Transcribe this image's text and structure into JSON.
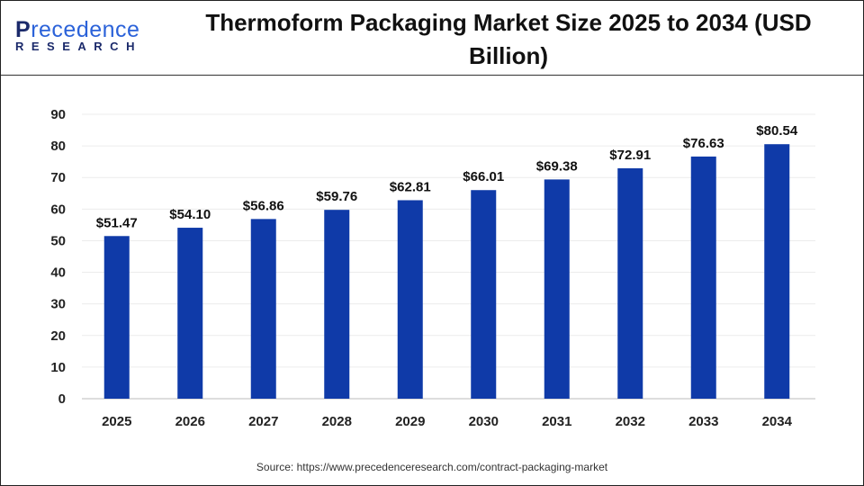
{
  "logo": {
    "text_top": "Precedence",
    "text_bottom": "RESEARCH"
  },
  "title": "Thermoform Packaging Market Size 2025 to 2034 (USD Billion)",
  "source": "Source: https://www.precedenceresearch.com/contract-packaging-market",
  "chart_data": {
    "type": "bar",
    "title": "Thermoform Packaging Market Size 2025 to 2034 (USD Billion)",
    "categories": [
      "2025",
      "2026",
      "2027",
      "2028",
      "2029",
      "2030",
      "2031",
      "2032",
      "2033",
      "2034"
    ],
    "values": [
      51.47,
      54.1,
      56.86,
      59.76,
      62.81,
      66.01,
      69.38,
      72.91,
      76.63,
      80.54
    ],
    "data_labels": [
      "$51.47",
      "$54.10",
      "$56.86",
      "$59.76",
      "$62.81",
      "$66.01",
      "$69.38",
      "$72.91",
      "$76.63",
      "$80.54"
    ],
    "xlabel": "",
    "ylabel": "",
    "ylim": [
      0,
      90
    ],
    "yticks": [
      0,
      10,
      20,
      30,
      40,
      50,
      60,
      70,
      80,
      90
    ],
    "grid": true,
    "bar_color": "#0f3aa8"
  }
}
